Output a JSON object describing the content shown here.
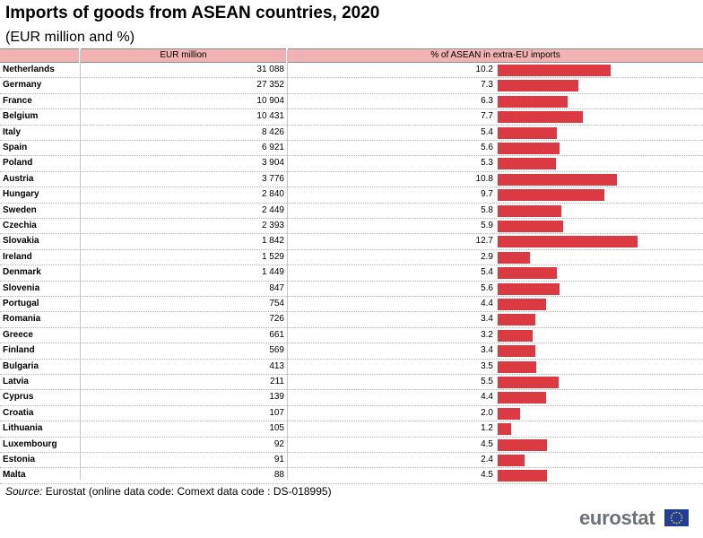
{
  "title": "Imports of goods from ASEAN countries, 2020",
  "subtitle": "(EUR million and %)",
  "source_label": "Source:",
  "source_text": "Eurostat (online data code: Comext data code : DS-018995)",
  "logo_text": "eurostat",
  "colors": {
    "bar": "#dc3a42",
    "header": "#f0b2b2"
  },
  "chart_data": {
    "type": "table",
    "title": "Imports of goods from ASEAN countries, 2020",
    "subtitle": "(EUR million and %)",
    "columns": [
      "EUR million",
      "% of ASEAN in extra-EU imports"
    ],
    "xlim": [
      0,
      13
    ],
    "rows": [
      {
        "country": "Netherlands",
        "eur": "31 088",
        "pct": 10.2
      },
      {
        "country": "Germany",
        "eur": "27 352",
        "pct": 7.3
      },
      {
        "country": "France",
        "eur": "10 904",
        "pct": 6.3
      },
      {
        "country": "Belgium",
        "eur": "10 431",
        "pct": 7.7
      },
      {
        "country": "Italy",
        "eur": "8 426",
        "pct": 5.4
      },
      {
        "country": "Spain",
        "eur": "6 921",
        "pct": 5.6
      },
      {
        "country": "Poland",
        "eur": "3 904",
        "pct": 5.3
      },
      {
        "country": "Austria",
        "eur": "3 776",
        "pct": 10.8
      },
      {
        "country": "Hungary",
        "eur": "2 840",
        "pct": 9.7
      },
      {
        "country": "Sweden",
        "eur": "2 449",
        "pct": 5.8
      },
      {
        "country": "Czechia",
        "eur": "2 393",
        "pct": 5.9
      },
      {
        "country": "Slovakia",
        "eur": "1 842",
        "pct": 12.7
      },
      {
        "country": "Ireland",
        "eur": "1 529",
        "pct": 2.9
      },
      {
        "country": "Denmark",
        "eur": "1 449",
        "pct": 5.4
      },
      {
        "country": "Slovenia",
        "eur": "847",
        "pct": 5.6
      },
      {
        "country": "Portugal",
        "eur": "754",
        "pct": 4.4
      },
      {
        "country": "Romania",
        "eur": "726",
        "pct": 3.4
      },
      {
        "country": "Greece",
        "eur": "661",
        "pct": 3.2
      },
      {
        "country": "Finland",
        "eur": "569",
        "pct": 3.4
      },
      {
        "country": "Bulgaria",
        "eur": "413",
        "pct": 3.5
      },
      {
        "country": "Latvia",
        "eur": "211",
        "pct": 5.5
      },
      {
        "country": "Cyprus",
        "eur": "139",
        "pct": 4.4
      },
      {
        "country": "Croatia",
        "eur": "107",
        "pct": 2.0
      },
      {
        "country": "Lithuania",
        "eur": "105",
        "pct": 1.2
      },
      {
        "country": "Luxembourg",
        "eur": "92",
        "pct": 4.5
      },
      {
        "country": "Estonia",
        "eur": "91",
        "pct": 2.4
      },
      {
        "country": "Malta",
        "eur": "88",
        "pct": 4.5
      }
    ]
  }
}
